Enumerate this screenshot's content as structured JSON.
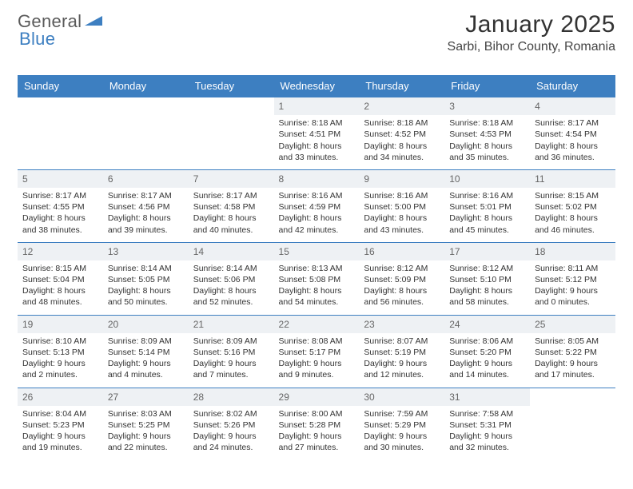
{
  "logo": {
    "general": "General",
    "blue": "Blue"
  },
  "title": {
    "month": "January 2025",
    "location": "Sarbi, Bihor County, Romania"
  },
  "colors": {
    "header_bg": "#3d7fc1",
    "daynum_bg": "#eef1f4",
    "rule": "#3d7fc1",
    "text": "#333333"
  },
  "day_headers": [
    "Sunday",
    "Monday",
    "Tuesday",
    "Wednesday",
    "Thursday",
    "Friday",
    "Saturday"
  ],
  "weeks": [
    {
      "nums": [
        "",
        "",
        "",
        "1",
        "2",
        "3",
        "4"
      ],
      "cells": [
        null,
        null,
        null,
        {
          "sunrise": "Sunrise: 8:18 AM",
          "sunset": "Sunset: 4:51 PM",
          "dl1": "Daylight: 8 hours",
          "dl2": "and 33 minutes."
        },
        {
          "sunrise": "Sunrise: 8:18 AM",
          "sunset": "Sunset: 4:52 PM",
          "dl1": "Daylight: 8 hours",
          "dl2": "and 34 minutes."
        },
        {
          "sunrise": "Sunrise: 8:18 AM",
          "sunset": "Sunset: 4:53 PM",
          "dl1": "Daylight: 8 hours",
          "dl2": "and 35 minutes."
        },
        {
          "sunrise": "Sunrise: 8:17 AM",
          "sunset": "Sunset: 4:54 PM",
          "dl1": "Daylight: 8 hours",
          "dl2": "and 36 minutes."
        }
      ]
    },
    {
      "nums": [
        "5",
        "6",
        "7",
        "8",
        "9",
        "10",
        "11"
      ],
      "cells": [
        {
          "sunrise": "Sunrise: 8:17 AM",
          "sunset": "Sunset: 4:55 PM",
          "dl1": "Daylight: 8 hours",
          "dl2": "and 38 minutes."
        },
        {
          "sunrise": "Sunrise: 8:17 AM",
          "sunset": "Sunset: 4:56 PM",
          "dl1": "Daylight: 8 hours",
          "dl2": "and 39 minutes."
        },
        {
          "sunrise": "Sunrise: 8:17 AM",
          "sunset": "Sunset: 4:58 PM",
          "dl1": "Daylight: 8 hours",
          "dl2": "and 40 minutes."
        },
        {
          "sunrise": "Sunrise: 8:16 AM",
          "sunset": "Sunset: 4:59 PM",
          "dl1": "Daylight: 8 hours",
          "dl2": "and 42 minutes."
        },
        {
          "sunrise": "Sunrise: 8:16 AM",
          "sunset": "Sunset: 5:00 PM",
          "dl1": "Daylight: 8 hours",
          "dl2": "and 43 minutes."
        },
        {
          "sunrise": "Sunrise: 8:16 AM",
          "sunset": "Sunset: 5:01 PM",
          "dl1": "Daylight: 8 hours",
          "dl2": "and 45 minutes."
        },
        {
          "sunrise": "Sunrise: 8:15 AM",
          "sunset": "Sunset: 5:02 PM",
          "dl1": "Daylight: 8 hours",
          "dl2": "and 46 minutes."
        }
      ]
    },
    {
      "nums": [
        "12",
        "13",
        "14",
        "15",
        "16",
        "17",
        "18"
      ],
      "cells": [
        {
          "sunrise": "Sunrise: 8:15 AM",
          "sunset": "Sunset: 5:04 PM",
          "dl1": "Daylight: 8 hours",
          "dl2": "and 48 minutes."
        },
        {
          "sunrise": "Sunrise: 8:14 AM",
          "sunset": "Sunset: 5:05 PM",
          "dl1": "Daylight: 8 hours",
          "dl2": "and 50 minutes."
        },
        {
          "sunrise": "Sunrise: 8:14 AM",
          "sunset": "Sunset: 5:06 PM",
          "dl1": "Daylight: 8 hours",
          "dl2": "and 52 minutes."
        },
        {
          "sunrise": "Sunrise: 8:13 AM",
          "sunset": "Sunset: 5:08 PM",
          "dl1": "Daylight: 8 hours",
          "dl2": "and 54 minutes."
        },
        {
          "sunrise": "Sunrise: 8:12 AM",
          "sunset": "Sunset: 5:09 PM",
          "dl1": "Daylight: 8 hours",
          "dl2": "and 56 minutes."
        },
        {
          "sunrise": "Sunrise: 8:12 AM",
          "sunset": "Sunset: 5:10 PM",
          "dl1": "Daylight: 8 hours",
          "dl2": "and 58 minutes."
        },
        {
          "sunrise": "Sunrise: 8:11 AM",
          "sunset": "Sunset: 5:12 PM",
          "dl1": "Daylight: 9 hours",
          "dl2": "and 0 minutes."
        }
      ]
    },
    {
      "nums": [
        "19",
        "20",
        "21",
        "22",
        "23",
        "24",
        "25"
      ],
      "cells": [
        {
          "sunrise": "Sunrise: 8:10 AM",
          "sunset": "Sunset: 5:13 PM",
          "dl1": "Daylight: 9 hours",
          "dl2": "and 2 minutes."
        },
        {
          "sunrise": "Sunrise: 8:09 AM",
          "sunset": "Sunset: 5:14 PM",
          "dl1": "Daylight: 9 hours",
          "dl2": "and 4 minutes."
        },
        {
          "sunrise": "Sunrise: 8:09 AM",
          "sunset": "Sunset: 5:16 PM",
          "dl1": "Daylight: 9 hours",
          "dl2": "and 7 minutes."
        },
        {
          "sunrise": "Sunrise: 8:08 AM",
          "sunset": "Sunset: 5:17 PM",
          "dl1": "Daylight: 9 hours",
          "dl2": "and 9 minutes."
        },
        {
          "sunrise": "Sunrise: 8:07 AM",
          "sunset": "Sunset: 5:19 PM",
          "dl1": "Daylight: 9 hours",
          "dl2": "and 12 minutes."
        },
        {
          "sunrise": "Sunrise: 8:06 AM",
          "sunset": "Sunset: 5:20 PM",
          "dl1": "Daylight: 9 hours",
          "dl2": "and 14 minutes."
        },
        {
          "sunrise": "Sunrise: 8:05 AM",
          "sunset": "Sunset: 5:22 PM",
          "dl1": "Daylight: 9 hours",
          "dl2": "and 17 minutes."
        }
      ]
    },
    {
      "nums": [
        "26",
        "27",
        "28",
        "29",
        "30",
        "31",
        ""
      ],
      "cells": [
        {
          "sunrise": "Sunrise: 8:04 AM",
          "sunset": "Sunset: 5:23 PM",
          "dl1": "Daylight: 9 hours",
          "dl2": "and 19 minutes."
        },
        {
          "sunrise": "Sunrise: 8:03 AM",
          "sunset": "Sunset: 5:25 PM",
          "dl1": "Daylight: 9 hours",
          "dl2": "and 22 minutes."
        },
        {
          "sunrise": "Sunrise: 8:02 AM",
          "sunset": "Sunset: 5:26 PM",
          "dl1": "Daylight: 9 hours",
          "dl2": "and 24 minutes."
        },
        {
          "sunrise": "Sunrise: 8:00 AM",
          "sunset": "Sunset: 5:28 PM",
          "dl1": "Daylight: 9 hours",
          "dl2": "and 27 minutes."
        },
        {
          "sunrise": "Sunrise: 7:59 AM",
          "sunset": "Sunset: 5:29 PM",
          "dl1": "Daylight: 9 hours",
          "dl2": "and 30 minutes."
        },
        {
          "sunrise": "Sunrise: 7:58 AM",
          "sunset": "Sunset: 5:31 PM",
          "dl1": "Daylight: 9 hours",
          "dl2": "and 32 minutes."
        },
        null
      ]
    }
  ]
}
